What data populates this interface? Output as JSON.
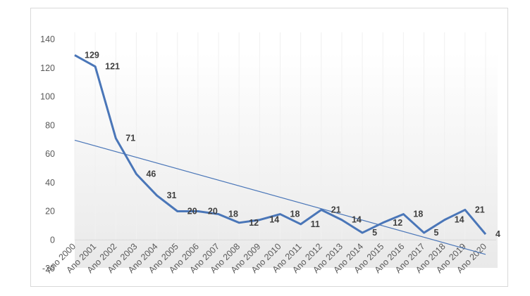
{
  "chart_data": {
    "type": "line",
    "categories": [
      "Ano 2000",
      "Ano 2001",
      "Ano 2002",
      "Ano 2003",
      "Ano 2004",
      "Ano 2005",
      "Ano 2006",
      "Ano 2007",
      "Ano 2008",
      "Ano 2009",
      "Ano 2010",
      "Ano 2011",
      "Ano 2012",
      "Ano 2013",
      "Ano 2014",
      "Ano 2015",
      "Ano 2016",
      "Ano 2017",
      "Ano 2018",
      "Ano 2019",
      "Ano 2020"
    ],
    "series": [
      {
        "values": [
          129,
          121,
          71,
          46,
          31,
          20,
          20,
          18,
          12,
          14,
          18,
          11,
          21,
          14,
          5,
          12,
          18,
          5,
          14,
          21,
          4
        ],
        "labels": [
          "129",
          "121",
          "71",
          "46",
          "31",
          "20",
          "20",
          "18",
          "12",
          "14",
          "18",
          "11",
          "21",
          "14",
          "5",
          "12",
          "18",
          "5",
          "14",
          "21",
          "4"
        ],
        "color": "#4a76b8",
        "trendline": "linear"
      }
    ],
    "y_ticks": [
      "140",
      "120",
      "100",
      "80",
      "60",
      "40",
      "20",
      "0",
      "-20"
    ],
    "ylim": [
      -20,
      140
    ],
    "title": "",
    "xlabel": "",
    "ylabel": "",
    "grid": false,
    "legend": "none",
    "background_gradient": true
  }
}
